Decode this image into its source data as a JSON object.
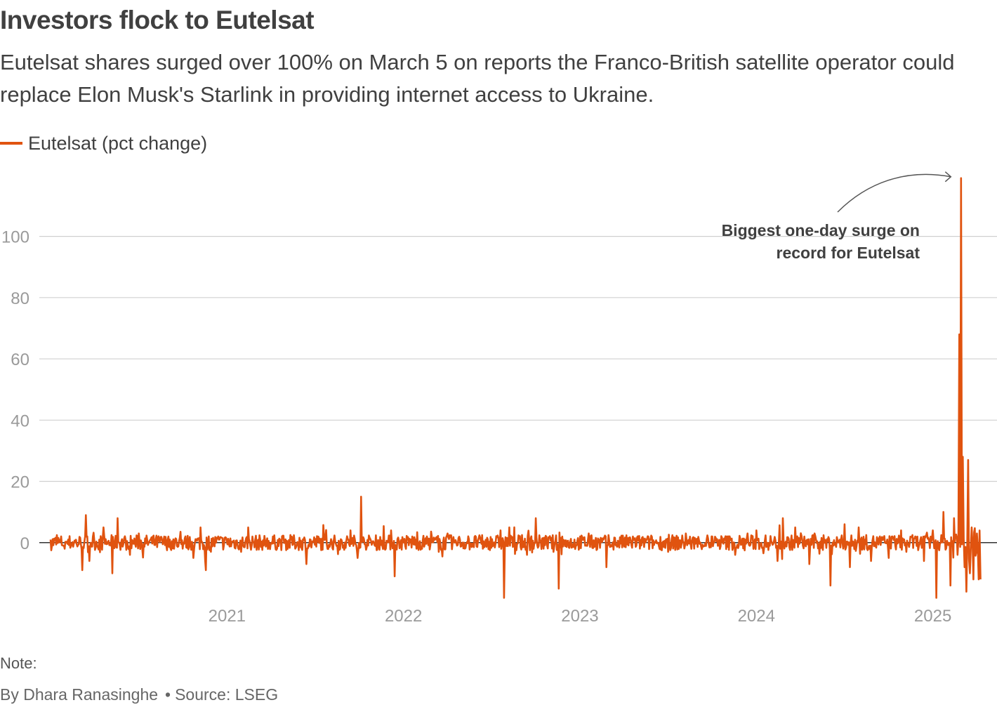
{
  "header": {
    "title": "Investors flock to Eutelsat",
    "subtitle": "Eutelsat shares surged over 100% on March 5 on reports the Franco-British satellite operator could replace Elon Musk's Starlink in providing internet access to Ukraine."
  },
  "colors": {
    "series": "#E0530F",
    "grid": "#d0d0d0",
    "zero_line": "#333333",
    "tick_text": "#9a9a9a",
    "annotation_text": "#404040",
    "arrow": "#555555"
  },
  "chart_data": {
    "type": "line",
    "title": "Investors flock to Eutelsat",
    "xlabel": "",
    "ylabel": "",
    "ylim": [
      -20,
      121
    ],
    "xlim": [
      2020.0,
      2025.3
    ],
    "x_ticks": [
      2021,
      2022,
      2023,
      2024,
      2025
    ],
    "x_tick_labels": [
      "2021",
      "2022",
      "2023",
      "2024",
      "2025"
    ],
    "y_ticks": [
      0,
      20,
      40,
      60,
      80,
      100
    ],
    "y_tick_labels": [
      "0",
      "20",
      "40",
      "60",
      "80",
      "100"
    ],
    "grid": true,
    "legend_position": "top-left",
    "series": [
      {
        "name": "Eutelsat (pct change)",
        "x": [
          2020.0,
          2020.08,
          2020.18,
          2020.2,
          2020.22,
          2020.3,
          2020.35,
          2020.38,
          2020.45,
          2020.5,
          2020.58,
          2020.7,
          2020.85,
          2020.88,
          2020.95,
          2021.08,
          2021.12,
          2021.3,
          2021.45,
          2021.55,
          2021.7,
          2021.74,
          2021.76,
          2021.9,
          2021.93,
          2021.95,
          2022.05,
          2022.2,
          2022.25,
          2022.32,
          2022.45,
          2022.55,
          2022.57,
          2022.6,
          2022.7,
          2022.75,
          2022.85,
          2022.88,
          2022.9,
          2023.05,
          2023.15,
          2023.3,
          2023.4,
          2023.5,
          2023.6,
          2023.75,
          2023.88,
          2023.95,
          2024.0,
          2024.12,
          2024.15,
          2024.22,
          2024.3,
          2024.33,
          2024.42,
          2024.5,
          2024.53,
          2024.58,
          2024.65,
          2024.7,
          2024.75,
          2024.82,
          2024.85,
          2024.9,
          2024.95,
          2025.0,
          2025.02,
          2025.06,
          2025.1,
          2025.12,
          2025.14,
          2025.15,
          2025.16,
          2025.17,
          2025.18,
          2025.19,
          2025.2,
          2025.21,
          2025.22,
          2025.23,
          2025.25,
          2025.26,
          2025.27
        ],
        "values": [
          1,
          -2,
          -9,
          9,
          -6,
          5,
          -10,
          8,
          -4,
          3,
          2,
          -2,
          5,
          -9,
          2,
          -3,
          5,
          1,
          -7,
          2,
          4,
          -5,
          15,
          -2,
          4,
          -11,
          2,
          -3,
          3,
          1,
          -2,
          4,
          -18,
          5,
          -4,
          8,
          -3,
          -15,
          2,
          3,
          -8,
          2,
          1,
          -3,
          3,
          2,
          -4,
          3,
          4,
          -6,
          8,
          5,
          -7,
          3,
          -14,
          6,
          -8,
          5,
          -6,
          2,
          -5,
          4,
          -3,
          2,
          -6,
          4,
          -18,
          10,
          -14,
          8,
          -4,
          68,
          119,
          28,
          -8,
          -16,
          27,
          -10,
          5,
          -12,
          3,
          -12,
          -12
        ]
      }
    ],
    "annotations": [
      {
        "text_line1": "Biggest one-day surge on",
        "text_line2": "record for Eutelsat",
        "target_x": 2025.15,
        "target_y": 119
      }
    ]
  },
  "footer": {
    "note_label": "Note:",
    "byline": "By Dhara Ranasinghe",
    "separator": "•",
    "source": "Source: LSEG"
  }
}
